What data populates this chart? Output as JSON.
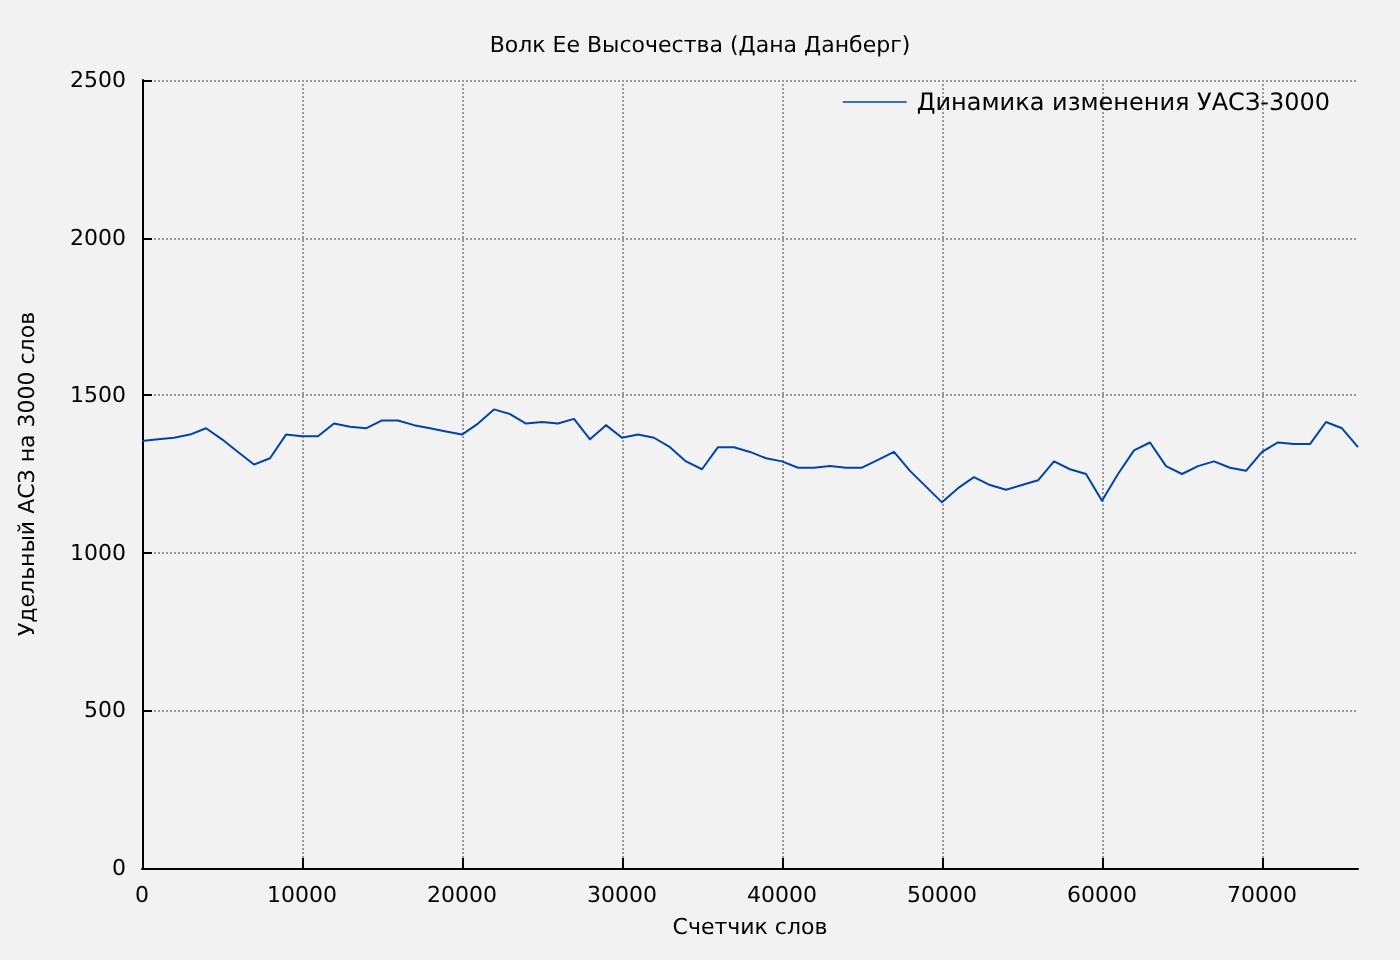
{
  "chart_data": {
    "type": "line",
    "title": "Волк Ее Высочества (Дана Данберг)",
    "xlabel": "Счетчик слов",
    "ylabel": "Удельный АСЗ на 3000 слов",
    "x": [
      0,
      1000,
      2000,
      3000,
      4000,
      5000,
      6000,
      7000,
      8000,
      9000,
      10000,
      11000,
      12000,
      13000,
      14000,
      15000,
      16000,
      17000,
      18000,
      19000,
      20000,
      21000,
      22000,
      23000,
      24000,
      25000,
      26000,
      27000,
      28000,
      29000,
      30000,
      31000,
      32000,
      33000,
      34000,
      35000,
      36000,
      37000,
      38000,
      39000,
      40000,
      41000,
      42000,
      43000,
      44000,
      45000,
      46000,
      47000,
      48000,
      49000,
      50000,
      51000,
      52000,
      53000,
      54000,
      55000,
      56000,
      57000,
      58000,
      59000,
      60000,
      61000,
      62000,
      63000,
      64000,
      65000,
      66000,
      67000,
      68000,
      69000,
      70000,
      71000,
      72000,
      73000,
      74000,
      75000,
      76000
    ],
    "series": [
      {
        "name": "Динамика изменения УАСЗ-3000",
        "color": "#0044aa",
        "values": [
          1355,
          1360,
          1365,
          1375,
          1395,
          1360,
          1320,
          1280,
          1300,
          1375,
          1370,
          1370,
          1410,
          1400,
          1395,
          1420,
          1420,
          1405,
          1395,
          1385,
          1375,
          1410,
          1455,
          1440,
          1410,
          1415,
          1410,
          1425,
          1360,
          1405,
          1365,
          1375,
          1365,
          1335,
          1290,
          1265,
          1335,
          1335,
          1320,
          1300,
          1290,
          1270,
          1270,
          1275,
          1270,
          1270,
          1295,
          1320,
          1260,
          1210,
          1160,
          1205,
          1240,
          1215,
          1200,
          1215,
          1230,
          1290,
          1265,
          1250,
          1165,
          1250,
          1325,
          1350,
          1275,
          1250,
          1275,
          1290,
          1270,
          1260,
          1320,
          1350,
          1345,
          1345,
          1415,
          1395,
          1335
        ]
      }
    ],
    "xlim": [
      0,
      76000
    ],
    "xticks": [
      0,
      10000,
      20000,
      30000,
      40000,
      50000,
      60000,
      70000
    ],
    "ylim": [
      0,
      2500
    ],
    "yticks": [
      0,
      500,
      1000,
      1500,
      2000,
      2500
    ],
    "grid": true,
    "legend": "top right",
    "marker": "none",
    "line_style": "solid"
  }
}
